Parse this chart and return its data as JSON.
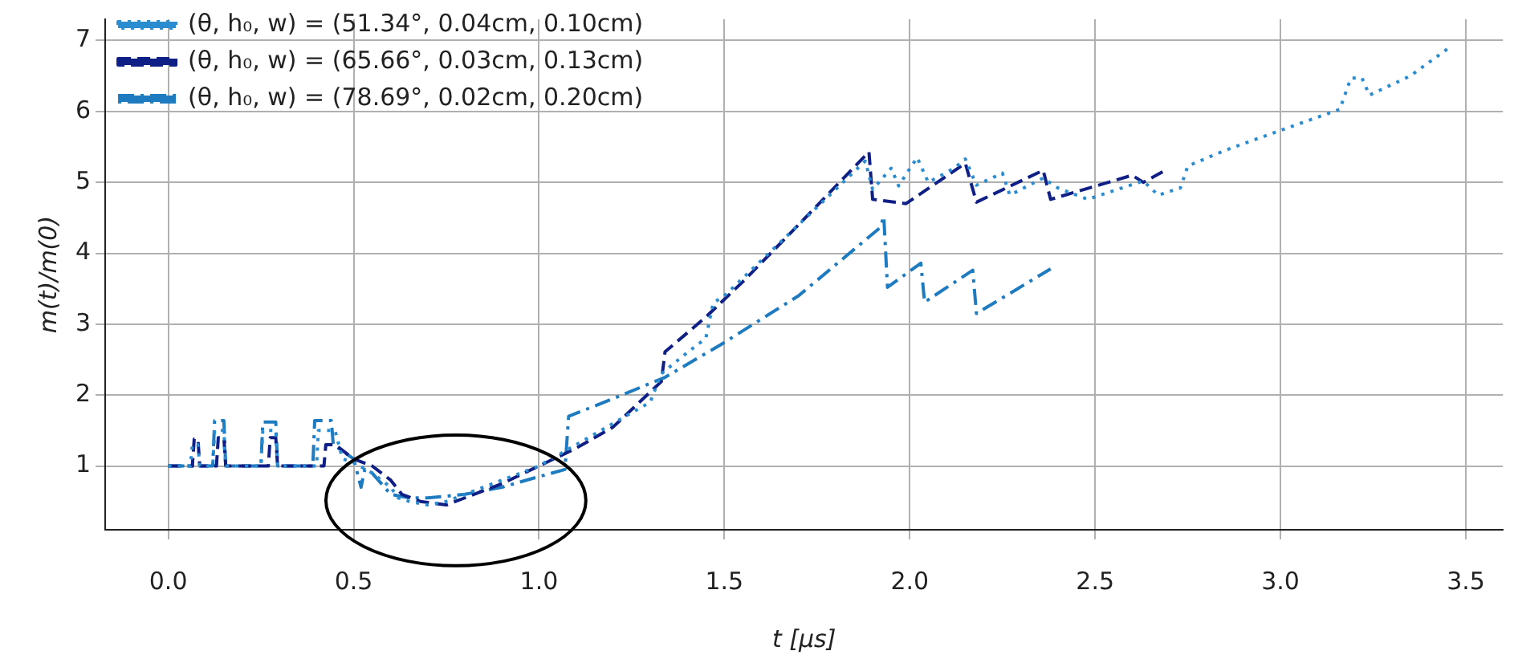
{
  "chart_data": {
    "type": "line",
    "xlabel": "t [μs]",
    "ylabel": "m(t)/m(0)",
    "xlim": [
      -0.17,
      3.6
    ],
    "xticks": [
      {
        "value": 0,
        "label": "0.0"
      },
      0.5,
      {
        "value": 1,
        "label": "1.0"
      },
      1.5,
      {
        "value": 2,
        "label": "2.0"
      },
      2.5,
      {
        "value": 3,
        "label": "3.0"
      },
      3.5
    ],
    "ylim": [
      0.1,
      7.3
    ],
    "yticks": [
      1,
      2,
      3,
      4,
      5,
      6,
      7
    ],
    "grid": true,
    "legend": "top left",
    "marker": "none",
    "series": [
      {
        "name": "(θ, h₀, w) = (51.34°, 0.04cm, 0.10cm)",
        "color": "#2b8cd0",
        "line_style": "dotted",
        "x": [
          0,
          0.06,
          0.065,
          0.08,
          0.085,
          0.12,
          0.125,
          0.15,
          0.155,
          0.25,
          0.255,
          0.29,
          0.295,
          0.4,
          0.405,
          0.45,
          0.47,
          0.5,
          0.55,
          0.6,
          0.62,
          0.65,
          0.7,
          0.75,
          0.8,
          0.9,
          1.0,
          1.1,
          1.2,
          1.3,
          1.33,
          1.4,
          1.45,
          1.47,
          1.5,
          1.6,
          1.7,
          1.8,
          1.88,
          1.9,
          1.95,
          1.97,
          2.02,
          2.05,
          2.12,
          2.15,
          2.18,
          2.25,
          2.27,
          2.36,
          2.4,
          2.48,
          2.63,
          2.67,
          2.73,
          2.75,
          2.85,
          3.02,
          3.16,
          3.19,
          3.22,
          3.24,
          3.35,
          3.45
        ],
        "values": [
          1,
          1,
          1.3,
          1.3,
          1,
          1,
          1.5,
          1.5,
          1,
          1,
          1.5,
          1.5,
          1,
          1,
          1.5,
          1.5,
          1.1,
          1.05,
          0.9,
          0.7,
          0.55,
          0.5,
          0.45,
          0.5,
          0.6,
          0.8,
          1.0,
          1.3,
          1.6,
          1.9,
          2.3,
          2.6,
          2.8,
          3.3,
          3.4,
          3.9,
          4.4,
          4.9,
          5.3,
          4.9,
          5.2,
          4.95,
          5.35,
          5.0,
          5.2,
          5.33,
          4.96,
          5.13,
          4.82,
          5.06,
          4.92,
          4.76,
          5.02,
          4.82,
          4.92,
          5.23,
          5.45,
          5.77,
          6.03,
          6.47,
          6.47,
          6.23,
          6.5,
          6.88
        ]
      },
      {
        "name": "(θ, h₀, w) = (65.66°, 0.03cm, 0.13cm)",
        "color": "#101f85",
        "line_style": "dashed",
        "x": [
          0,
          0.065,
          0.07,
          0.08,
          0.085,
          0.13,
          0.135,
          0.15,
          0.155,
          0.27,
          0.275,
          0.29,
          0.295,
          0.42,
          0.425,
          0.45,
          0.5,
          0.55,
          0.6,
          0.63,
          0.68,
          0.75,
          0.8,
          0.9,
          1.0,
          1.1,
          1.2,
          1.33,
          1.34,
          1.45,
          1.55,
          1.7,
          1.89,
          1.9,
          1.99,
          2.15,
          2.18,
          2.36,
          2.38,
          2.6,
          2.63,
          2.69
        ],
        "values": [
          1,
          1,
          1.38,
          1.38,
          1,
          1,
          1.4,
          1.4,
          1,
          1,
          1.4,
          1.4,
          1,
          1,
          1.3,
          1.3,
          1.1,
          1.0,
          0.8,
          0.6,
          0.5,
          0.45,
          0.55,
          0.75,
          1.0,
          1.25,
          1.55,
          2.19,
          2.61,
          3.1,
          3.6,
          4.4,
          5.43,
          4.76,
          4.7,
          5.27,
          4.72,
          5.17,
          4.76,
          5.1,
          5.0,
          5.17
        ]
      },
      {
        "name": "(θ, h₀, w) = (78.69°, 0.02cm, 0.20cm)",
        "color": "#1f7bc0",
        "line_style": "dashdot",
        "x": [
          0,
          0.12,
          0.125,
          0.15,
          0.155,
          0.25,
          0.255,
          0.29,
          0.295,
          0.39,
          0.395,
          0.44,
          0.445,
          0.5,
          0.52,
          0.53,
          0.55,
          0.6,
          0.65,
          0.7,
          0.8,
          0.9,
          1.0,
          1.07,
          1.08,
          1.2,
          1.34,
          1.49,
          1.7,
          1.92,
          1.93,
          1.94,
          2.03,
          2.04,
          2.17,
          2.18,
          2.38
        ],
        "values": [
          1,
          1,
          1.64,
          1.64,
          1,
          1,
          1.62,
          1.62,
          1,
          1,
          1.64,
          1.64,
          1.3,
          1.1,
          0.7,
          0.95,
          0.9,
          0.6,
          0.55,
          0.55,
          0.6,
          0.7,
          0.85,
          0.95,
          1.7,
          1.95,
          2.25,
          2.71,
          3.4,
          4.36,
          4.52,
          3.52,
          3.86,
          3.31,
          3.76,
          3.15,
          3.78
        ]
      }
    ]
  }
}
